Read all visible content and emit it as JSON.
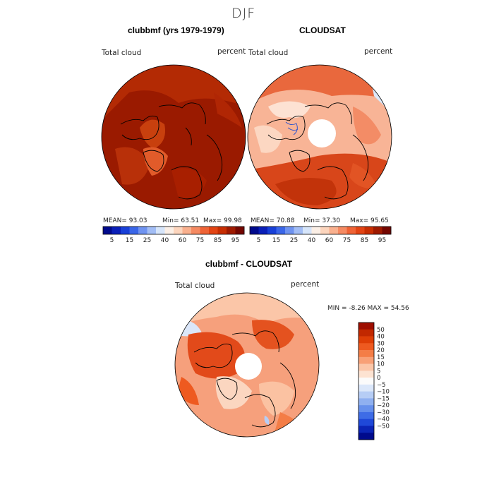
{
  "title": "DJF",
  "panels": [
    {
      "title": "clubbmf (yrs 1979-1979)",
      "left_label": "Total cloud",
      "right_label": "percent",
      "stats": {
        "mean": "MEAN=   93.03",
        "min": "Min=   63.51",
        "max": "Max=   99.98"
      }
    },
    {
      "title": "CLOUDSAT",
      "left_label": "Total cloud",
      "right_label": "percent",
      "stats": {
        "mean": "MEAN=   70.88",
        "min": "Min=   37.30",
        "max": "Max=   95.65"
      }
    },
    {
      "title": "clubbmf - CLOUDSAT",
      "left_label": "Total cloud",
      "right_label": "percent",
      "stats": {
        "minmax": "MIN =   -8.26  MAX =   54.56"
      }
    }
  ],
  "colorbar_abs": {
    "colors": [
      "#000a8c",
      "#0a1fb8",
      "#1840d8",
      "#3a66e8",
      "#6f93f0",
      "#a2bdf5",
      "#d6e5fa",
      "#fbefe6",
      "#fcd5bd",
      "#f9b08e",
      "#f58a62",
      "#ef6336",
      "#e24414",
      "#c72e02",
      "#9e1a00",
      "#730600"
    ],
    "labels": [
      "5",
      "15",
      "25",
      "40",
      "60",
      "75",
      "85",
      "95"
    ]
  },
  "colorbar_diff": {
    "colors": [
      "#9e0e00",
      "#c22800",
      "#de3e06",
      "#ee5a20",
      "#f47d46",
      "#f8a076",
      "#fbc6a8",
      "#fde3d2",
      "#fbfbfb",
      "#dbe7fa",
      "#b6cdf5",
      "#8fb0f0",
      "#6690ec",
      "#3e6ce6",
      "#1f48d8",
      "#0b24b5",
      "#000a8c"
    ],
    "labels": [
      "50",
      "40",
      "30",
      "20",
      "15",
      "10",
      "5",
      "0",
      "−5",
      "−10",
      "−15",
      "−20",
      "−30",
      "−40",
      "−50"
    ]
  },
  "chart_data": {
    "type": "heatmap",
    "maps": [
      {
        "title": "clubbmf (yrs 1979-1979)",
        "variable": "Total cloud",
        "units": "percent",
        "mean": 93.03,
        "min": 63.51,
        "max": 99.98
      },
      {
        "title": "CLOUDSAT",
        "variable": "Total cloud",
        "units": "percent",
        "mean": 70.88,
        "min": 37.3,
        "max": 95.65
      },
      {
        "title": "clubbmf - CLOUDSAT",
        "variable": "Total cloud",
        "units": "percent",
        "min": -8.26,
        "max": 54.56
      }
    ],
    "contour_levels_abs": [
      5,
      15,
      25,
      40,
      60,
      75,
      85,
      95
    ],
    "contour_levels_diff": [
      -50,
      -40,
      -30,
      -20,
      -15,
      -10,
      -5,
      0,
      5,
      10,
      15,
      20,
      30,
      40,
      50
    ]
  }
}
